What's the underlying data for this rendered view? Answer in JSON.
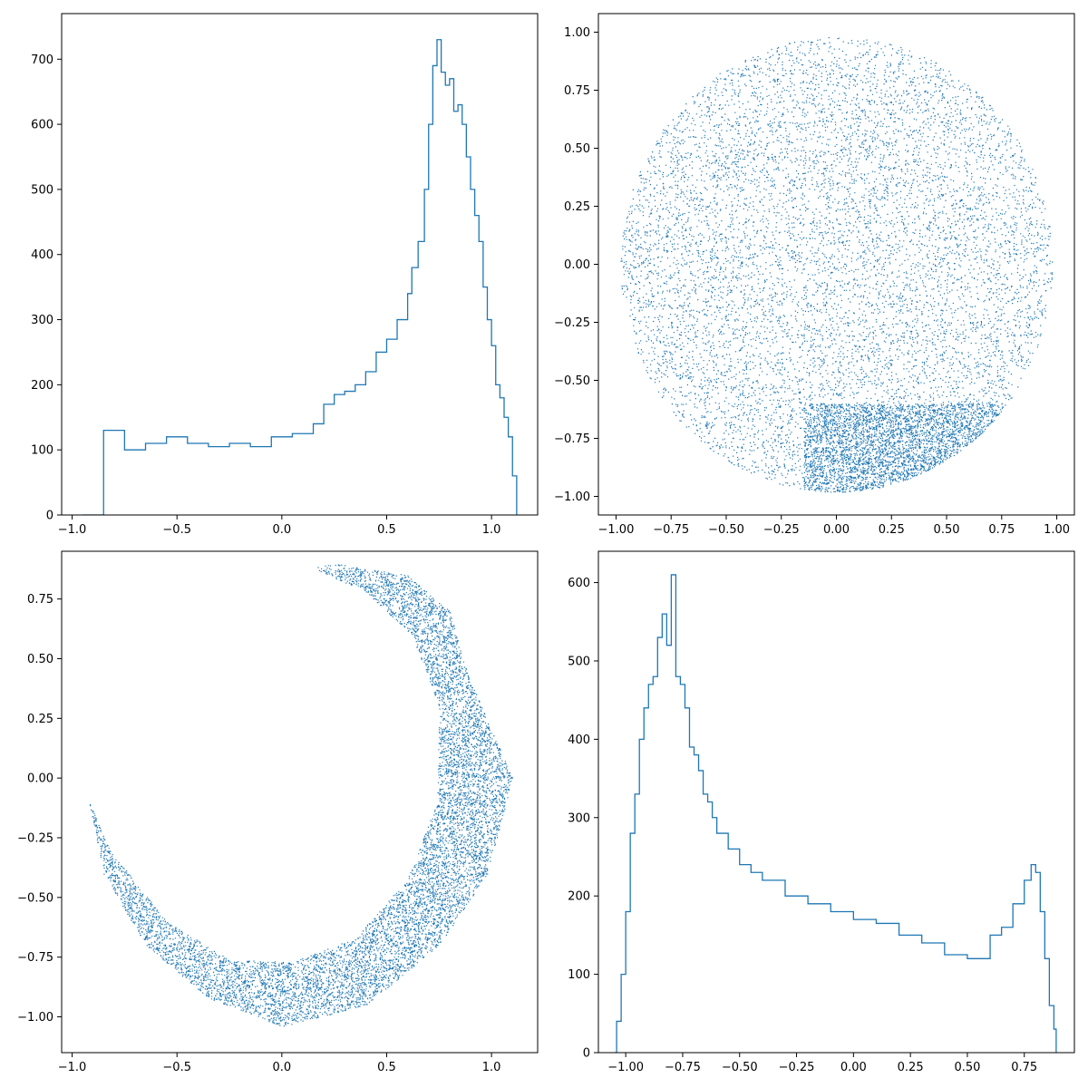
{
  "colors": {
    "series": "#1f77b4",
    "axis": "#000000",
    "background": "#ffffff"
  },
  "chart_data": [
    {
      "type": "histogram",
      "title": "",
      "xlabel": "",
      "ylabel": "",
      "grid": false,
      "xlim": [
        -1.05,
        1.22
      ],
      "ylim": [
        0,
        770
      ],
      "xticks": [
        {
          "value": -1.0,
          "label": "−1.0"
        },
        {
          "value": -0.5,
          "label": "−0.5"
        },
        {
          "value": 0.0,
          "label": "0.0"
        },
        {
          "value": 0.5,
          "label": "0.5"
        },
        {
          "value": 1.0,
          "label": "1.0"
        }
      ],
      "yticks": [
        {
          "value": 0,
          "label": "0"
        },
        {
          "value": 100,
          "label": "100"
        },
        {
          "value": 200,
          "label": "200"
        },
        {
          "value": 300,
          "label": "300"
        },
        {
          "value": 400,
          "label": "400"
        },
        {
          "value": 500,
          "label": "500"
        },
        {
          "value": 600,
          "label": "600"
        },
        {
          "value": 700,
          "label": "700"
        }
      ],
      "histtype": "step",
      "x": [
        -0.95,
        -0.85,
        -0.75,
        -0.65,
        -0.55,
        -0.45,
        -0.35,
        -0.25,
        -0.15,
        -0.05,
        0.05,
        0.15,
        0.2,
        0.25,
        0.3,
        0.35,
        0.4,
        0.45,
        0.5,
        0.55,
        0.6,
        0.62,
        0.65,
        0.68,
        0.7,
        0.72,
        0.74,
        0.76,
        0.78,
        0.8,
        0.82,
        0.84,
        0.86,
        0.88,
        0.9,
        0.92,
        0.94,
        0.96,
        0.98,
        1.0,
        1.02,
        1.04,
        1.06,
        1.08,
        1.1,
        1.12
      ],
      "values": [
        0,
        130,
        100,
        110,
        120,
        110,
        105,
        110,
        105,
        120,
        125,
        140,
        170,
        185,
        190,
        200,
        220,
        250,
        270,
        300,
        340,
        380,
        420,
        500,
        600,
        690,
        730,
        680,
        660,
        670,
        620,
        630,
        600,
        550,
        500,
        460,
        420,
        350,
        300,
        260,
        200,
        180,
        150,
        120,
        60,
        0
      ]
    },
    {
      "type": "scatter",
      "title": "",
      "xlabel": "",
      "ylabel": "",
      "grid": false,
      "description": "uniform disc of radius ~0.98 centred at origin, denser near the bottom-right rim",
      "xlim": [
        -1.08,
        1.08
      ],
      "ylim": [
        -1.08,
        1.08
      ],
      "xticks": [
        {
          "value": -1.0,
          "label": "−1.00"
        },
        {
          "value": -0.75,
          "label": "−0.75"
        },
        {
          "value": -0.5,
          "label": "−0.50"
        },
        {
          "value": -0.25,
          "label": "−0.25"
        },
        {
          "value": 0.0,
          "label": "0.00"
        },
        {
          "value": 0.25,
          "label": "0.25"
        },
        {
          "value": 0.5,
          "label": "0.50"
        },
        {
          "value": 0.75,
          "label": "0.75"
        },
        {
          "value": 1.0,
          "label": "1.00"
        }
      ],
      "yticks": [
        {
          "value": -1.0,
          "label": "−1.00"
        },
        {
          "value": -0.75,
          "label": "−0.75"
        },
        {
          "value": -0.5,
          "label": "−0.50"
        },
        {
          "value": -0.25,
          "label": "−0.25"
        },
        {
          "value": 0.0,
          "label": "0.00"
        },
        {
          "value": 0.25,
          "label": "0.25"
        },
        {
          "value": 0.5,
          "label": "0.50"
        },
        {
          "value": 0.75,
          "label": "0.75"
        },
        {
          "value": 1.0,
          "label": "1.00"
        }
      ],
      "shape": {
        "kind": "disc",
        "cx": 0.0,
        "cy": 0.0,
        "r": 0.98,
        "dense_center": [
          0.3,
          -0.85
        ]
      },
      "point_count": 9000
    },
    {
      "type": "scatter",
      "title": "",
      "xlabel": "",
      "ylabel": "",
      "grid": false,
      "description": "crescent-shaped band opening to the upper-left",
      "xlim": [
        -1.05,
        1.22
      ],
      "ylim": [
        -1.15,
        0.95
      ],
      "xticks": [
        {
          "value": -1.0,
          "label": "−1.0"
        },
        {
          "value": -0.5,
          "label": "−0.5"
        },
        {
          "value": 0.0,
          "label": "0.0"
        },
        {
          "value": 0.5,
          "label": "0.5"
        },
        {
          "value": 1.0,
          "label": "1.0"
        }
      ],
      "yticks": [
        {
          "value": -1.0,
          "label": "−1.00"
        },
        {
          "value": -0.75,
          "label": "−0.75"
        },
        {
          "value": -0.5,
          "label": "−0.50"
        },
        {
          "value": -0.25,
          "label": "−0.25"
        },
        {
          "value": 0.0,
          "label": "0.00"
        },
        {
          "value": 0.25,
          "label": "0.25"
        },
        {
          "value": 0.5,
          "label": "0.50"
        },
        {
          "value": 0.75,
          "label": "0.75"
        }
      ],
      "shape": {
        "kind": "band",
        "outer": [
          [
            -0.92,
            -0.1
          ],
          [
            -0.85,
            -0.4
          ],
          [
            -0.65,
            -0.7
          ],
          [
            -0.35,
            -0.92
          ],
          [
            0.0,
            -1.04
          ],
          [
            0.4,
            -0.95
          ],
          [
            0.75,
            -0.7
          ],
          [
            0.98,
            -0.4
          ],
          [
            1.1,
            0.0
          ],
          [
            1.0,
            0.2
          ],
          [
            0.88,
            0.45
          ],
          [
            0.8,
            0.7
          ],
          [
            0.6,
            0.85
          ],
          [
            0.25,
            0.9
          ],
          [
            0.15,
            0.88
          ]
        ],
        "inner": [
          [
            -0.92,
            -0.1
          ],
          [
            -0.82,
            -0.3
          ],
          [
            -0.55,
            -0.6
          ],
          [
            -0.25,
            -0.76
          ],
          [
            0.05,
            -0.77
          ],
          [
            0.35,
            -0.67
          ],
          [
            0.6,
            -0.42
          ],
          [
            0.74,
            -0.1
          ],
          [
            0.75,
            0.3
          ],
          [
            0.62,
            0.6
          ],
          [
            0.4,
            0.78
          ],
          [
            0.15,
            0.88
          ]
        ]
      },
      "point_count": 9000
    },
    {
      "type": "histogram",
      "title": "",
      "xlabel": "",
      "ylabel": "",
      "grid": false,
      "xlim": [
        -1.12,
        0.97
      ],
      "ylim": [
        0,
        640
      ],
      "xticks": [
        {
          "value": -1.0,
          "label": "−1.00"
        },
        {
          "value": -0.75,
          "label": "−0.75"
        },
        {
          "value": -0.5,
          "label": "−0.50"
        },
        {
          "value": -0.25,
          "label": "−0.25"
        },
        {
          "value": 0.0,
          "label": "0.00"
        },
        {
          "value": 0.25,
          "label": "0.25"
        },
        {
          "value": 0.5,
          "label": "0.50"
        },
        {
          "value": 0.75,
          "label": "0.75"
        }
      ],
      "yticks": [
        {
          "value": 0,
          "label": "0"
        },
        {
          "value": 100,
          "label": "100"
        },
        {
          "value": 200,
          "label": "200"
        },
        {
          "value": 300,
          "label": "300"
        },
        {
          "value": 400,
          "label": "400"
        },
        {
          "value": 500,
          "label": "500"
        },
        {
          "value": 600,
          "label": "600"
        }
      ],
      "histtype": "step",
      "x": [
        -1.05,
        -1.04,
        -1.02,
        -1.0,
        -0.98,
        -0.96,
        -0.94,
        -0.92,
        -0.9,
        -0.88,
        -0.86,
        -0.84,
        -0.82,
        -0.8,
        -0.78,
        -0.76,
        -0.74,
        -0.72,
        -0.7,
        -0.68,
        -0.66,
        -0.64,
        -0.62,
        -0.6,
        -0.55,
        -0.5,
        -0.45,
        -0.4,
        -0.3,
        -0.2,
        -0.1,
        0.0,
        0.1,
        0.2,
        0.3,
        0.4,
        0.5,
        0.6,
        0.65,
        0.7,
        0.75,
        0.78,
        0.8,
        0.82,
        0.84,
        0.86,
        0.88,
        0.89
      ],
      "values": [
        0,
        40,
        100,
        180,
        280,
        330,
        400,
        440,
        470,
        480,
        530,
        560,
        520,
        610,
        480,
        470,
        440,
        390,
        380,
        360,
        330,
        320,
        300,
        280,
        260,
        240,
        230,
        220,
        200,
        190,
        180,
        170,
        165,
        150,
        140,
        125,
        120,
        150,
        160,
        190,
        220,
        240,
        230,
        180,
        120,
        60,
        30,
        0
      ]
    }
  ]
}
